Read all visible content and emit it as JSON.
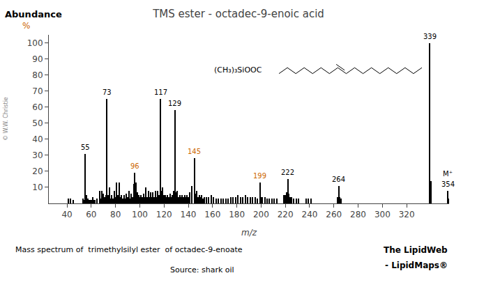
{
  "chart_data": {
    "type": "bar",
    "title": "TMS ester - octadec-9-enoic acid",
    "xlabel": "m/z",
    "ylabel": "Abundance",
    "color": "#000000",
    "grid": false,
    "xlim": [
      25,
      355
    ],
    "ylim": [
      0,
      105
    ],
    "xticks": [
      40,
      60,
      80,
      100,
      120,
      140,
      160,
      180,
      200,
      220,
      240,
      260,
      280,
      300,
      320
    ],
    "yticks": [
      10,
      20,
      30,
      40,
      50,
      60,
      70,
      80,
      90,
      100
    ],
    "x": [
      41,
      43,
      45,
      53,
      54,
      55,
      56,
      57,
      58,
      59,
      60,
      61,
      62,
      63,
      65,
      67,
      68,
      69,
      70,
      71,
      72,
      73,
      74,
      75,
      76,
      77,
      78,
      79,
      80,
      81,
      82,
      83,
      84,
      85,
      86,
      87,
      88,
      89,
      90,
      91,
      92,
      93,
      94,
      95,
      96,
      97,
      98,
      99,
      100,
      101,
      102,
      103,
      104,
      105,
      106,
      107,
      108,
      109,
      110,
      111,
      112,
      113,
      114,
      115,
      116,
      117,
      118,
      119,
      120,
      121,
      122,
      123,
      124,
      125,
      126,
      127,
      128,
      129,
      130,
      131,
      132,
      133,
      134,
      135,
      136,
      137,
      138,
      139,
      140,
      141,
      143,
      145,
      146,
      147,
      148,
      149,
      150,
      151,
      152,
      153,
      155,
      157,
      159,
      161,
      163,
      165,
      167,
      169,
      171,
      173,
      175,
      177,
      179,
      181,
      183,
      185,
      187,
      189,
      191,
      193,
      195,
      197,
      199,
      200,
      201,
      203,
      205,
      207,
      209,
      211,
      213,
      219,
      220,
      221,
      222,
      223,
      224,
      225,
      227,
      229,
      231,
      237,
      239,
      241,
      263,
      264,
      265,
      266,
      339,
      340,
      354,
      355
    ],
    "values": [
      3,
      3,
      2,
      3,
      2,
      31,
      5,
      3,
      2,
      2,
      2,
      4,
      2,
      2,
      3,
      8,
      3,
      8,
      6,
      4,
      5,
      65,
      5,
      10,
      3,
      5,
      3,
      8,
      4,
      13,
      5,
      13,
      4,
      5,
      3,
      5,
      3,
      6,
      4,
      8,
      3,
      6,
      4,
      12,
      19,
      13,
      7,
      5,
      4,
      5,
      4,
      6,
      4,
      10,
      4,
      8,
      4,
      7,
      4,
      7,
      4,
      8,
      4,
      8,
      5,
      65,
      8,
      10,
      5,
      5,
      4,
      5,
      4,
      6,
      4,
      5,
      8,
      58,
      7,
      8,
      4,
      5,
      4,
      5,
      4,
      5,
      4,
      5,
      4,
      7,
      11,
      28,
      6,
      8,
      4,
      5,
      4,
      5,
      3,
      4,
      4,
      4,
      5,
      4,
      3,
      3,
      3,
      3,
      3,
      3,
      4,
      4,
      4,
      5,
      4,
      4,
      5,
      4,
      4,
      4,
      4,
      3,
      13,
      4,
      4,
      4,
      3,
      3,
      3,
      3,
      3,
      5,
      5,
      7,
      15,
      6,
      4,
      4,
      3,
      3,
      3,
      3,
      3,
      3,
      4,
      11,
      4,
      3,
      100,
      14,
      8,
      3
    ],
    "annotations": [
      {
        "text": "%",
        "color": "#cc6600"
      },
      {
        "text": "55",
        "x": 55,
        "y": 31,
        "color": "#000000"
      },
      {
        "text": "73",
        "x": 73,
        "y": 65,
        "color": "#000000"
      },
      {
        "text": "96",
        "x": 96,
        "y": 19,
        "color": "#cc6600"
      },
      {
        "text": "117",
        "x": 117,
        "y": 65,
        "color": "#000000"
      },
      {
        "text": "129",
        "x": 129,
        "y": 58,
        "color": "#000000"
      },
      {
        "text": "145",
        "x": 145,
        "y": 28,
        "color": "#cc6600"
      },
      {
        "text": "199",
        "x": 199,
        "y": 13,
        "color": "#cc6600"
      },
      {
        "text": "222",
        "x": 222,
        "y": 15,
        "color": "#000000"
      },
      {
        "text": "264",
        "x": 264,
        "y": 11,
        "color": "#000000"
      },
      {
        "text": "339",
        "x": 339,
        "y": 100,
        "color": "#000000"
      },
      {
        "text": "354",
        "x": 354,
        "y": 8,
        "color": "#000000"
      },
      {
        "text": "M⁺",
        "x": 354,
        "y": 8,
        "color": "#000000"
      },
      {
        "text": "© W.W. Christie",
        "color": "#888888"
      },
      {
        "text": "(CH₃)₃SiOOC"
      },
      {
        "text": "Mass spectrum of  trimethylsilyl ester  of octadec-9-enoate"
      },
      {
        "text": "Source: shark oil"
      },
      {
        "text": "The LipidWeb"
      },
      {
        "text": "- LipidMaps®"
      }
    ]
  }
}
